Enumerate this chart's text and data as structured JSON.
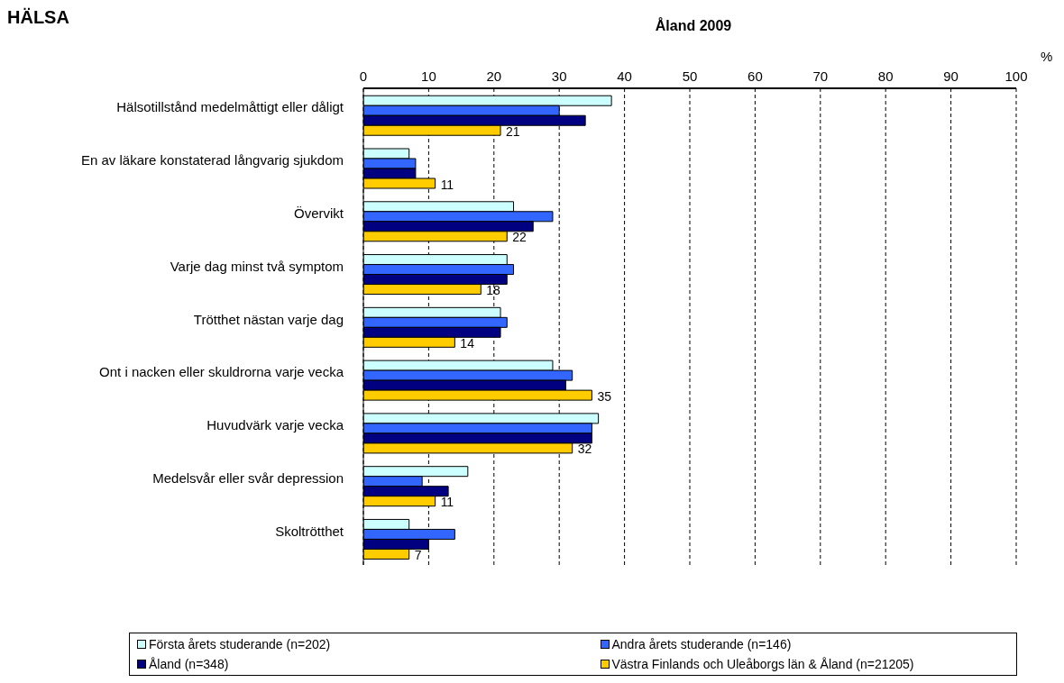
{
  "chart_data": {
    "type": "bar",
    "orientation": "horizontal",
    "title": "HÄLSA",
    "subtitle": "Åland 2009",
    "xlabel": "%",
    "categories": [
      "Hälsotillstånd medelmåttigt eller dåligt",
      "En av läkare konstaterad långvarig sjukdom",
      "Övervikt",
      "Varje dag minst två symptom",
      "Trötthet nästan varje dag",
      "Ont i nacken eller skuldrorna varje vecka",
      "Huvudvärk varje vecka",
      "Medelsvår eller svår depression",
      "Skoltrötthet"
    ],
    "series": [
      {
        "name": "Första årets studerande (n=202)",
        "color": "#ccffff",
        "values": [
          38,
          7,
          23,
          22,
          21,
          29,
          36,
          16,
          7
        ]
      },
      {
        "name": "Andra årets studerande (n=146)",
        "color": "#3366ff",
        "values": [
          30,
          8,
          29,
          23,
          22,
          32,
          35,
          9,
          14
        ]
      },
      {
        "name": "Åland (n=348)",
        "color": "#000080",
        "values": [
          34,
          8,
          26,
          22,
          21,
          31,
          35,
          13,
          10
        ]
      },
      {
        "name": "Västra Finlands och Uleåborgs län & Åland (n=21205)",
        "color": "#ffcc00",
        "values": [
          21,
          11,
          22,
          18,
          14,
          35,
          32,
          11,
          7
        ],
        "value_labels": [
          "21",
          "11",
          "22",
          "18",
          "14",
          "35",
          "32",
          "11",
          "7"
        ]
      }
    ],
    "xlim": [
      0,
      100
    ],
    "xticks": [
      0,
      10,
      20,
      30,
      40,
      50,
      60,
      70,
      80,
      90,
      100
    ],
    "grid": "x",
    "legend": "bottom"
  }
}
